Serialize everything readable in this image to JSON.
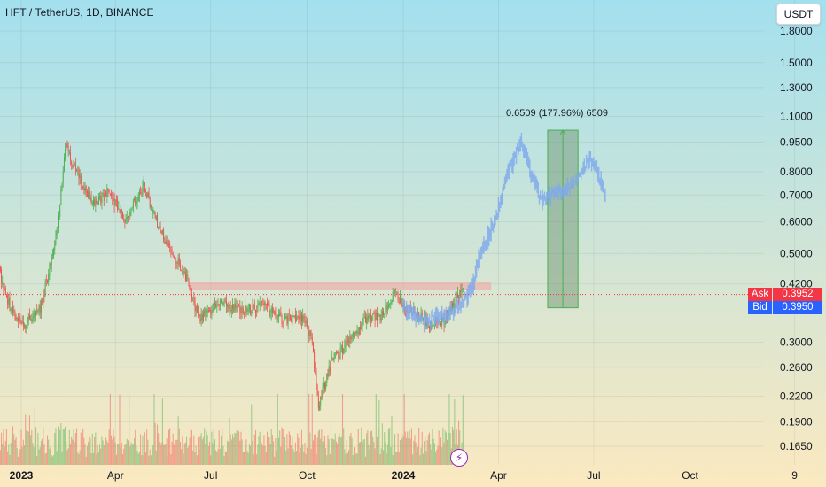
{
  "header": {
    "symbol_title": "HFT / TetherUS, 1D, BINANCE",
    "currency_button": "USDT"
  },
  "quote": {
    "ask_label": "Ask",
    "ask_value": "0.3952",
    "bid_label": "Bid",
    "bid_value": "0.3950"
  },
  "annotations": {
    "measure_label": "0.6509 (177.96%) 6509",
    "flash_icon": "lightning-icon"
  },
  "colors": {
    "bg_top": "#a3e0ee",
    "bg_bottom": "#fbe9c0",
    "up": "#4caf50",
    "down": "#ef5350",
    "projection": "#7ea9ec",
    "resistance_zone": "#f4a0a0",
    "measure_fill": "#6a8f6a",
    "measure_line": "#4caf50",
    "ask": "#f23645",
    "bid": "#2962ff"
  },
  "chart_data": {
    "type": "candlestick",
    "log_scale": true,
    "grid": true,
    "y_ticks": [
      "1.8000",
      "1.5000",
      "1.3000",
      "1.1000",
      "0.9500",
      "0.8000",
      "0.7000",
      "0.6000",
      "0.5000",
      "0.4200",
      "0.3000",
      "0.2600",
      "0.2200",
      "0.1900",
      "0.1650"
    ],
    "x_ticks": [
      {
        "label": "2023",
        "date": "2023-01-01",
        "bold": true
      },
      {
        "label": "Apr",
        "date": "2023-04-01",
        "bold": false
      },
      {
        "label": "Jul",
        "date": "2023-07-01",
        "bold": false
      },
      {
        "label": "Oct",
        "date": "2023-10-01",
        "bold": false
      },
      {
        "label": "2024",
        "date": "2024-01-01",
        "bold": true
      },
      {
        "label": "Apr",
        "date": "2024-04-01",
        "bold": false
      },
      {
        "label": "Jul",
        "date": "2024-07-01",
        "bold": false
      },
      {
        "label": "Oct",
        "date": "2024-10-01",
        "bold": false
      },
      {
        "label": "9",
        "date": "2025-01-09",
        "bold": false
      }
    ],
    "price_path": [
      [
        "2022-12-10",
        0.46
      ],
      [
        "2022-12-22",
        0.36
      ],
      [
        "2023-01-05",
        0.33
      ],
      [
        "2023-01-20",
        0.37
      ],
      [
        "2023-02-05",
        0.58
      ],
      [
        "2023-02-12",
        0.93
      ],
      [
        "2023-02-25",
        0.78
      ],
      [
        "2023-03-10",
        0.66
      ],
      [
        "2023-03-25",
        0.71
      ],
      [
        "2023-04-10",
        0.61
      ],
      [
        "2023-04-28",
        0.74
      ],
      [
        "2023-05-15",
        0.56
      ],
      [
        "2023-06-01",
        0.47
      ],
      [
        "2023-06-10",
        0.42
      ],
      [
        "2023-06-20",
        0.34
      ],
      [
        "2023-07-10",
        0.38
      ],
      [
        "2023-08-01",
        0.36
      ],
      [
        "2023-08-20",
        0.37
      ],
      [
        "2023-09-10",
        0.34
      ],
      [
        "2023-09-25",
        0.35
      ],
      [
        "2023-10-05",
        0.31
      ],
      [
        "2023-10-12",
        0.21
      ],
      [
        "2023-10-25",
        0.27
      ],
      [
        "2023-11-10",
        0.3
      ],
      [
        "2023-11-25",
        0.34
      ],
      [
        "2023-12-10",
        0.35
      ],
      [
        "2023-12-25",
        0.4
      ],
      [
        "2024-01-01",
        0.37
      ],
      [
        "2024-01-15",
        0.35
      ],
      [
        "2024-01-28",
        0.33
      ],
      [
        "2024-02-10",
        0.34
      ],
      [
        "2024-02-20",
        0.39
      ],
      [
        "2024-02-28",
        0.4
      ]
    ],
    "projection_path": [
      [
        "2024-01-01",
        0.37
      ],
      [
        "2024-01-20",
        0.34
      ],
      [
        "2024-02-20",
        0.36
      ],
      [
        "2024-03-05",
        0.4
      ],
      [
        "2024-03-15",
        0.5
      ],
      [
        "2024-03-30",
        0.62
      ],
      [
        "2024-04-08",
        0.78
      ],
      [
        "2024-04-15",
        0.86
      ],
      [
        "2024-04-22",
        0.97
      ],
      [
        "2024-04-28",
        0.86
      ],
      [
        "2024-05-05",
        0.76
      ],
      [
        "2024-05-12",
        0.68
      ],
      [
        "2024-05-22",
        0.7
      ],
      [
        "2024-06-01",
        0.72
      ],
      [
        "2024-06-10",
        0.74
      ],
      [
        "2024-06-20",
        0.82
      ],
      [
        "2024-06-28",
        0.86
      ],
      [
        "2024-07-05",
        0.79
      ],
      [
        "2024-07-12",
        0.7
      ]
    ],
    "resistance_zone": {
      "from": "2023-06-10",
      "to": "2024-03-25",
      "low": 0.405,
      "high": 0.425
    },
    "measure_box": {
      "from": "2024-05-18",
      "to": "2024-06-16",
      "low": 0.366,
      "high": 1.017
    },
    "current_price": 0.3952,
    "volume_max": 1.0
  }
}
